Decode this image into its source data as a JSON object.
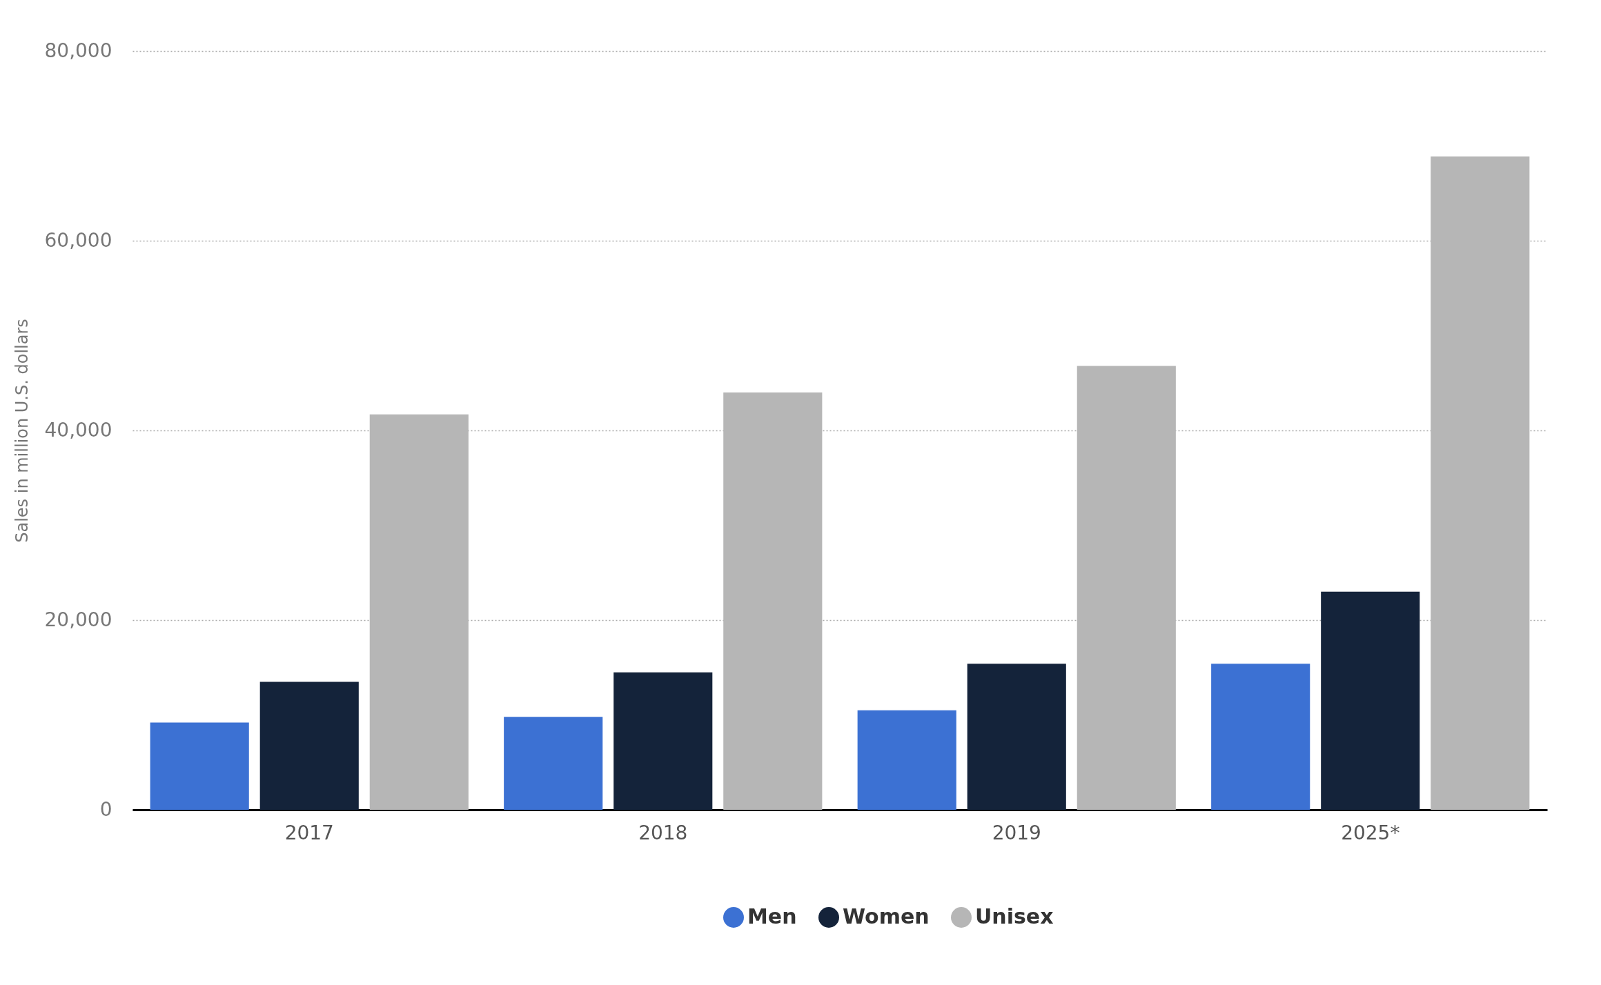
{
  "chart_data": {
    "type": "bar",
    "ylabel": "Sales in million U.S. dollars",
    "categories": [
      "2017",
      "2018",
      "2019",
      "2025*"
    ],
    "series": [
      {
        "name": "Men",
        "color": "#3c71d3",
        "values": [
          9200,
          9800,
          10500,
          15400
        ]
      },
      {
        "name": "Women",
        "color": "#14233a",
        "values": [
          13500,
          14500,
          15400,
          23000
        ]
      },
      {
        "name": "Unisex",
        "color": "#b6b6b6",
        "values": [
          41700,
          44000,
          46800,
          68900
        ]
      }
    ],
    "ylim": [
      0,
      80000
    ],
    "yticks": [
      0,
      {
        "value": 20000,
        "label": "20,000"
      },
      {
        "value": 40000,
        "label": "40,000"
      },
      {
        "value": 60000,
        "label": "60,000"
      },
      {
        "value": 80000,
        "label": "80,000"
      }
    ],
    "grid": "y",
    "legend": "bottom"
  }
}
